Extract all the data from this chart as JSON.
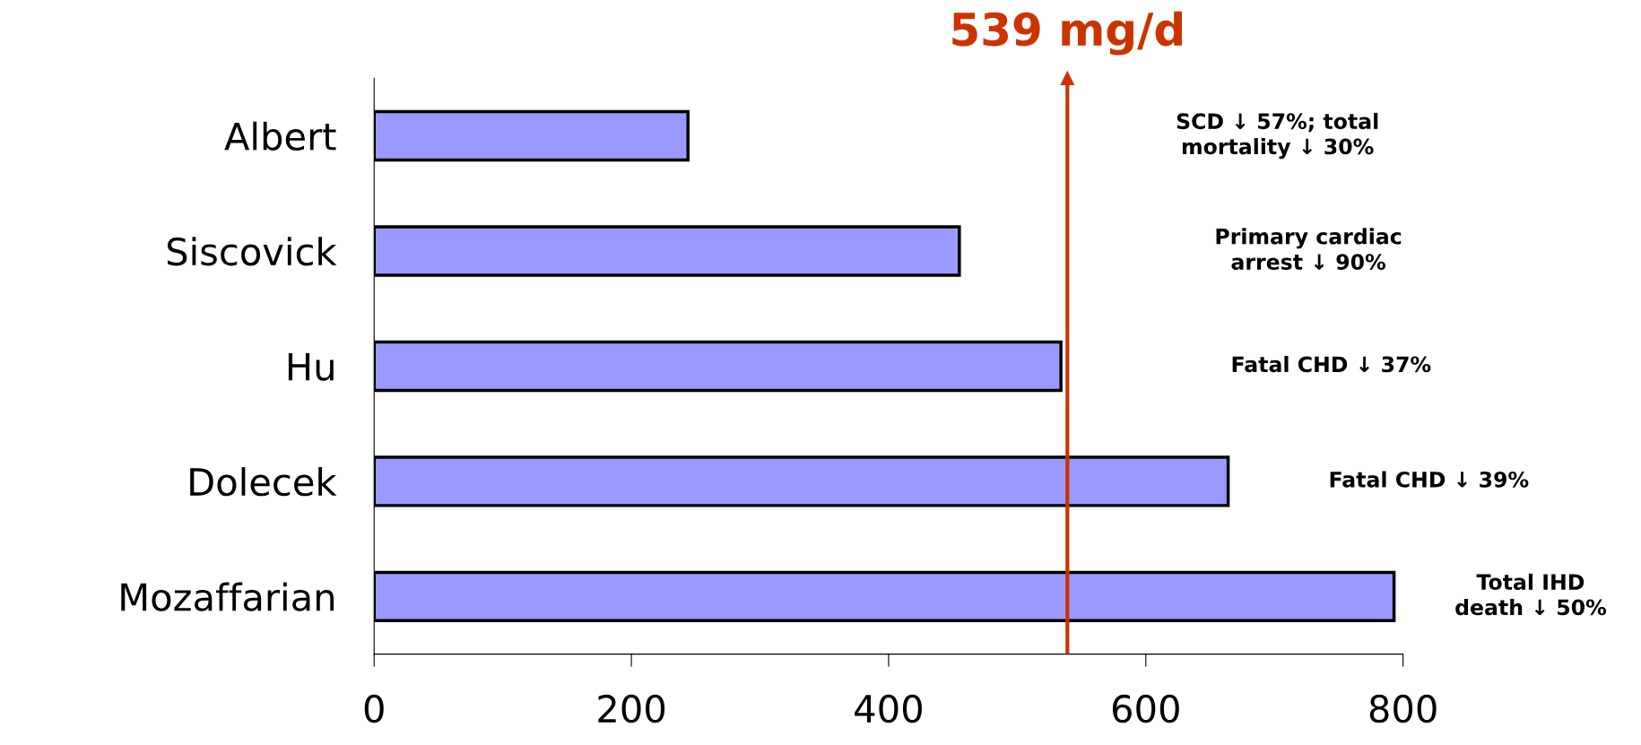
{
  "chart_data": {
    "type": "bar",
    "orientation": "horizontal",
    "categories": [
      "Albert",
      "Siscovick",
      "Hu",
      "Dolecek",
      "Mozaffarian"
    ],
    "values": [
      244,
      455,
      534,
      664,
      793
    ],
    "color": "#9999ff",
    "xlim": [
      0,
      800
    ],
    "xticks": [
      0,
      200,
      400,
      600,
      800
    ],
    "grid": false,
    "legend": false,
    "ref_lines": [
      {
        "axis": "x",
        "value": 539,
        "label": "539 mg/d",
        "color": "#cc3300"
      }
    ],
    "annotations": [
      "SCD ↓ 57%; total\nmortality ↓ 30%",
      "Primary cardiac\narrest ↓ 90%",
      "Fatal CHD ↓ 37%",
      "Fatal CHD ↓ 39%",
      "Total IHD\ndeath ↓ 50%"
    ]
  }
}
